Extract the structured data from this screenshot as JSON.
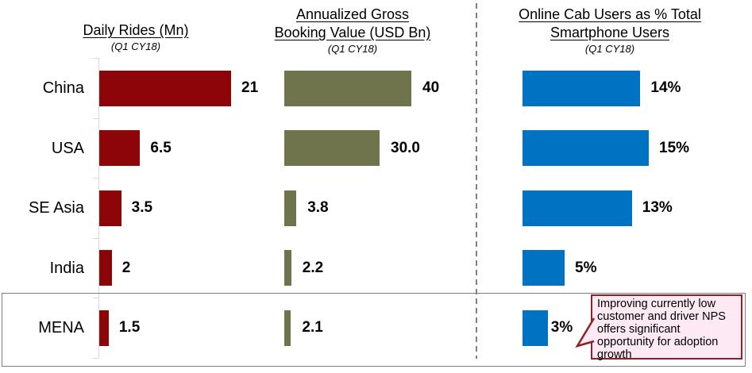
{
  "headers": [
    {
      "title_lines": [
        "Daily Rides (Mn)"
      ],
      "subtitle": "(Q1 CY18)"
    },
    {
      "title_lines": [
        "Annualized Gross",
        "Booking Value (USD Bn)"
      ],
      "subtitle": "(Q1 CY18)"
    },
    {
      "title_lines": [
        "Online Cab Users as % Total",
        "Smartphone Users"
      ],
      "subtitle": "(Q1 CY18)"
    }
  ],
  "chart_data": {
    "type": "bar",
    "orientation": "horizontal",
    "categories": [
      "China",
      "USA",
      "SE Asia",
      "India",
      "MENA"
    ],
    "series": [
      {
        "name": "Daily Rides (Mn)",
        "period": "Q1 CY18",
        "color": "#8C0609",
        "values": [
          21,
          6.5,
          3.5,
          2,
          1.5
        ],
        "value_labels": [
          "21",
          "6.5",
          "3.5",
          "2",
          "1.5"
        ]
      },
      {
        "name": "Annualized Gross Booking Value (USD Bn)",
        "period": "Q1 CY18",
        "color": "#6F744C",
        "values": [
          40,
          30,
          3.8,
          2.2,
          2.1
        ],
        "value_labels": [
          "40",
          "30.0",
          "3.8",
          "2.2",
          "2.1"
        ]
      },
      {
        "name": "Online Cab Users as % Total Smartphone Users",
        "period": "Q1 CY18",
        "color": "#0072C2",
        "values": [
          14,
          15,
          13,
          5,
          3
        ],
        "value_labels": [
          "14%",
          "15%",
          "13%",
          "5%",
          "3%"
        ]
      }
    ],
    "highlighted_category": "MENA",
    "axis": {
      "gridlines": false,
      "value_axis_labels_visible": false
    },
    "legend": "none"
  },
  "callout": {
    "text": "Improving currently low customer and driver NPS offers significant opportunity for adoption growth",
    "bg_color": "#FCE9F3",
    "border_color": "#8E2026"
  },
  "highlight_box": {
    "border_color": "#7F7F7F"
  },
  "colors": {
    "divider": "#808080",
    "category_axis": "#D9D9D9"
  }
}
